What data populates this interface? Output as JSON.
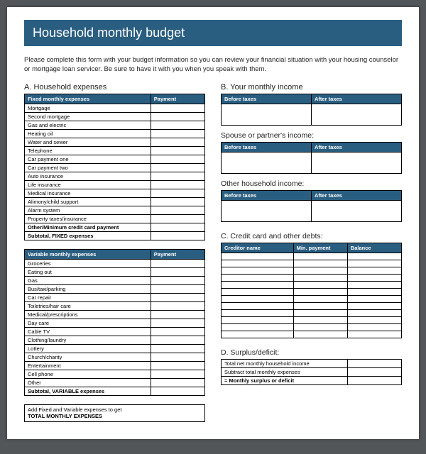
{
  "title": "Household monthly budget",
  "intro": "Please complete this form with your budget information so you can review your financial situation with your housing counselor or mortgage loan servicer. Be sure to have it with you when you speak with them.",
  "left": {
    "sectionA": "A. Household expenses",
    "fixedHeader1": "Fixed monthly expenses",
    "fixedHeader2": "Payment",
    "fixedRows": [
      "Mortgage",
      "Second mortgage",
      "Gas and electric",
      "Heating oil",
      "Water and sewer",
      "Telephone",
      "Car payment one",
      "Car payment two",
      "Auto insurance",
      "Life insurance",
      "Medical insurance",
      "Alimony/child support",
      "Alarm system",
      "Property taxes/insurance"
    ],
    "fixedBold1": "Other/Minimum credit card payment",
    "fixedBold2": "Subtotal, FIXED expenses",
    "varHeader1": "Variable monthly expenses",
    "varHeader2": "Payment",
    "varRows": [
      "Groceries",
      "Eating out",
      "Gas",
      "Bus/taxi/parking",
      "Car repair",
      "Toiletries/hair care",
      "Medical/prescriptions",
      "Day care",
      "Cable TV",
      "Clothing/laundry",
      "Lottery",
      "Church/charity",
      "Entertainment",
      "Cell phone",
      "Other"
    ],
    "varBold": "Subtotal, VARIABLE expenses",
    "totalBox1": "Add Fixed and Variable expenses to get",
    "totalBox2": "TOTAL MONTHLY EXPENSES"
  },
  "right": {
    "sectionB": "B. Your monthly income",
    "before": "Before taxes",
    "after": "After taxes",
    "spouseLabel": "Spouse or partner's income:",
    "otherLabel": "Other household income:",
    "sectionC": "C. Credit card and other debts:",
    "cHeaders": [
      "Creditor name",
      "Min. payment",
      "Balance"
    ],
    "cRowCount": 12,
    "sectionD": "D. Surplus/deficit:",
    "dRows": [
      "Total net monthly household income",
      "Subtract total monthly expenses"
    ],
    "dBold": "= Monthly surplus or deficit"
  },
  "colors": {
    "header": "#2a5e81",
    "white": "#ffffff",
    "page": "#525659"
  }
}
